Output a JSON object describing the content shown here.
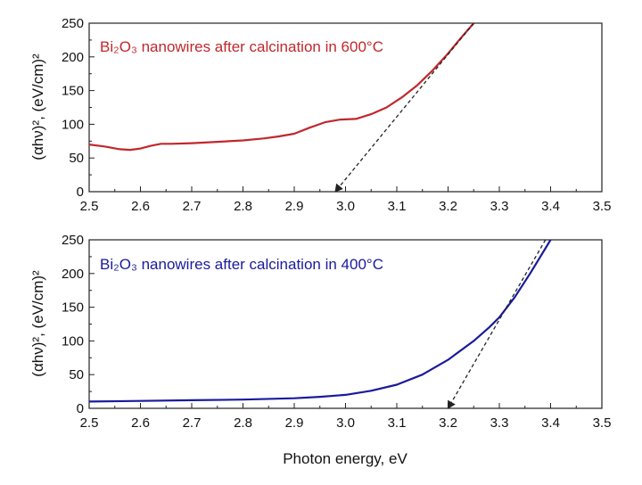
{
  "chart_data": [
    {
      "type": "line",
      "annotation": "Bi₂O₃ nanowires after calcination in 600°C",
      "annotation_color": "#c0282d",
      "ylabel": "(αhν)², (eV/cm)²",
      "xlim": [
        2.5,
        3.5
      ],
      "ylim": [
        0,
        250
      ],
      "xticks": [
        "2.5",
        "2.6",
        "2.7",
        "2.8",
        "2.9",
        "3.0",
        "3.1",
        "3.2",
        "3.3",
        "3.4",
        "3.5"
      ],
      "yticks": [
        "0",
        "50",
        "100",
        "150",
        "200",
        "250"
      ],
      "grid": false,
      "series": [
        {
          "color": "#c0282d",
          "x": [
            2.5,
            2.53,
            2.56,
            2.58,
            2.6,
            2.62,
            2.64,
            2.66,
            2.7,
            2.75,
            2.8,
            2.84,
            2.87,
            2.9,
            2.93,
            2.96,
            2.99,
            3.02,
            3.05,
            3.08,
            3.11,
            3.14,
            3.17,
            3.2,
            3.225,
            3.25
          ],
          "y": [
            70,
            67,
            63,
            62,
            64,
            68,
            71,
            71,
            72,
            74,
            76,
            79,
            82,
            86,
            95,
            103,
            107,
            108,
            115,
            125,
            140,
            158,
            180,
            205,
            228,
            250
          ]
        }
      ],
      "tangent": {
        "color": "#222222",
        "x": [
          3.25,
          2.98
        ],
        "y": [
          250,
          0
        ]
      }
    },
    {
      "type": "line",
      "annotation": "Bi₂O₃ nanowires after calcination in 400°C",
      "annotation_color": "#1a1a9c",
      "ylabel": "(αhν)², (eV/cm)²",
      "xlabel": "Photon energy, eV",
      "xlim": [
        2.5,
        3.5
      ],
      "ylim": [
        0,
        250
      ],
      "xticks": [
        "2.5",
        "2.6",
        "2.7",
        "2.8",
        "2.9",
        "3.0",
        "3.1",
        "3.2",
        "3.3",
        "3.4",
        "3.5"
      ],
      "yticks": [
        "0",
        "50",
        "100",
        "150",
        "200",
        "250"
      ],
      "grid": false,
      "series": [
        {
          "color": "#1a1a9c",
          "x": [
            2.5,
            2.6,
            2.7,
            2.8,
            2.9,
            2.95,
            3.0,
            3.05,
            3.1,
            3.15,
            3.2,
            3.25,
            3.28,
            3.3,
            3.33,
            3.36,
            3.38,
            3.4
          ],
          "y": [
            10,
            11,
            12,
            13,
            15,
            17,
            20,
            26,
            35,
            50,
            72,
            100,
            120,
            135,
            165,
            200,
            225,
            250
          ]
        }
      ],
      "tangent": {
        "color": "#222222",
        "x": [
          3.39,
          3.2
        ],
        "y": [
          250,
          0
        ]
      }
    }
  ]
}
